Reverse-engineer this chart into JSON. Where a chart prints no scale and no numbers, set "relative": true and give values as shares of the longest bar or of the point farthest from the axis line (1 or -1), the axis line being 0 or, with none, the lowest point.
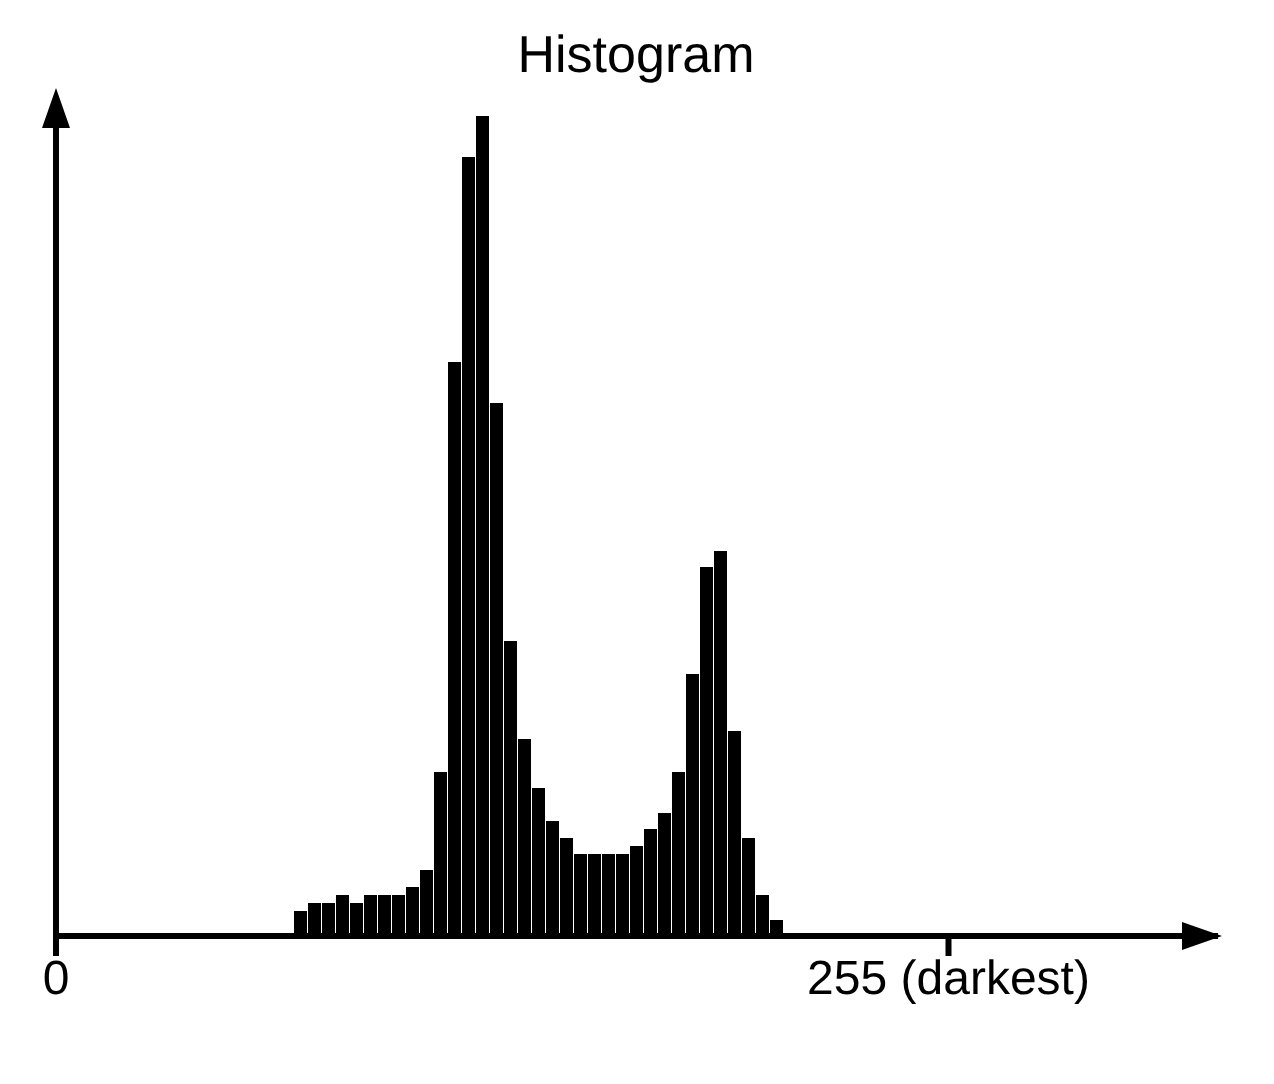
{
  "chart_data": {
    "type": "bar",
    "title": "Histogram",
    "relative": true,
    "color": "#000000",
    "x": [
      70,
      74,
      78,
      82,
      86,
      90,
      94,
      98,
      102,
      106,
      110,
      114,
      118,
      122,
      126,
      130,
      134,
      138,
      142,
      146,
      150,
      154,
      158,
      162,
      166,
      170,
      174,
      178,
      182,
      186,
      190,
      194,
      198,
      202,
      206
    ],
    "values": [
      0.03,
      0.04,
      0.04,
      0.05,
      0.04,
      0.05,
      0.05,
      0.05,
      0.06,
      0.08,
      0.2,
      0.7,
      0.95,
      1,
      0.65,
      0.36,
      0.24,
      0.18,
      0.14,
      0.12,
      0.1,
      0.1,
      0.1,
      0.1,
      0.11,
      0.13,
      0.15,
      0.2,
      0.32,
      0.45,
      0.47,
      0.25,
      0.12,
      0.05,
      0.02
    ],
    "xlim": [
      0,
      332
    ],
    "xticks": [
      0,
      {
        "value": 255,
        "label": "255 (darkest)"
      }
    ]
  }
}
